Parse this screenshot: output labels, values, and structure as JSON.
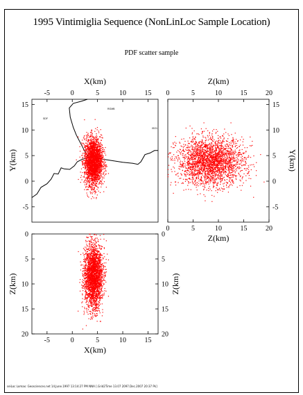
{
  "figure": {
    "title": "1995 Vintimiglia Sequence (NonLinLoc Sample Location)",
    "subtitle": "PDF scatter sample",
    "footer": "seiLoc Lomax: Geosciences.net 14.June.1997 13:14:27 PM NNA [.Grid2Time 13.07 2097.Dec.2007 20:37 Pk]"
  },
  "map_labels": [
    "SDF",
    "RGMB",
    "ISO1"
  ],
  "chart_data": [
    {
      "type": "scatter",
      "panel": "xy",
      "title": "",
      "xlabel": "X(km)",
      "ylabel": "Y(km)",
      "xlim": [
        -8,
        17
      ],
      "ylim": [
        -8,
        16
      ],
      "xticks": [
        -5,
        0,
        5,
        10,
        15
      ],
      "yticks": [
        15,
        10,
        5,
        0,
        -5
      ],
      "grid": false,
      "legend": "none",
      "series": [
        {
          "color": "#ff0000",
          "center": [
            4.2,
            3.8
          ],
          "spread": [
            0.9,
            2.3
          ],
          "count": 2600
        }
      ],
      "coastline": [
        [
          -8,
          -3.2
        ],
        [
          -7,
          -2.5
        ],
        [
          -6.2,
          -1.2
        ],
        [
          -5,
          -0.5
        ],
        [
          -4.2,
          0.4
        ],
        [
          -3.6,
          1.5
        ],
        [
          -2.8,
          1.4
        ],
        [
          -2.2,
          2.6
        ],
        [
          -1.6,
          2.4
        ],
        [
          -0.5,
          2.3
        ],
        [
          0.4,
          3
        ],
        [
          1,
          3.8
        ],
        [
          2,
          4.3
        ],
        [
          3.2,
          4.6
        ],
        [
          4.5,
          4.6
        ],
        [
          6,
          4.3
        ],
        [
          8,
          4
        ],
        [
          10,
          3.7
        ],
        [
          12,
          3.5
        ],
        [
          13,
          3.3
        ],
        [
          13.6,
          3.8
        ],
        [
          14.4,
          5.2
        ],
        [
          15.4,
          5.5
        ],
        [
          16.3,
          6
        ],
        [
          17,
          6
        ]
      ],
      "border": [
        [
          3,
          16
        ],
        [
          1.8,
          15.6
        ],
        [
          0.2,
          15.2
        ],
        [
          -0.6,
          14.3
        ],
        [
          -0.4,
          12.5
        ],
        [
          0.2,
          10.5
        ],
        [
          0.8,
          9
        ],
        [
          1.6,
          7.5
        ],
        [
          2.4,
          6
        ],
        [
          3,
          5
        ],
        [
          3.3,
          4.6
        ]
      ]
    },
    {
      "type": "scatter",
      "panel": "zy",
      "title": "",
      "xlabel": "Z(km)",
      "ylabel": "Y(km)",
      "xlim": [
        0,
        20
      ],
      "ylim": [
        -8,
        16
      ],
      "xticks": [
        0,
        5,
        10,
        15,
        20
      ],
      "yticks": [
        15,
        10,
        5,
        0,
        -5
      ],
      "grid": false,
      "legend": "none",
      "series": [
        {
          "color": "#ff0000",
          "center": [
            8.5,
            3.8
          ],
          "spread": [
            3.3,
            2.3
          ],
          "count": 2600
        }
      ]
    },
    {
      "type": "scatter",
      "panel": "xz",
      "title": "",
      "xlabel": "X(km)",
      "ylabel": "Z(km)",
      "xlim": [
        -8,
        17
      ],
      "ylim": [
        0,
        20
      ],
      "xticks": [
        -5,
        0,
        5,
        10,
        15
      ],
      "yticks": [
        0,
        5,
        10,
        15,
        20
      ],
      "grid": false,
      "legend": "none",
      "series": [
        {
          "color": "#ff0000",
          "center": [
            4.2,
            8.5
          ],
          "spread": [
            0.9,
            3.3
          ],
          "count": 2600
        }
      ]
    }
  ]
}
